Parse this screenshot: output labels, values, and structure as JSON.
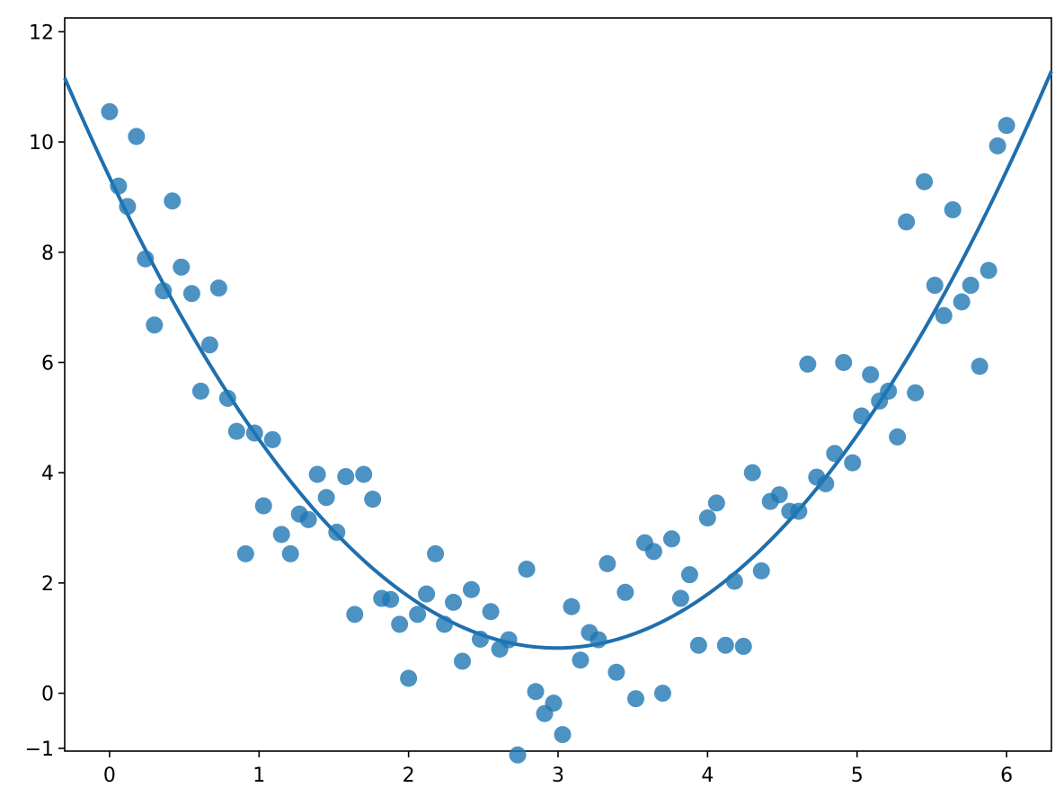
{
  "chart_data": {
    "type": "scatter",
    "title": "",
    "xlabel": "",
    "ylabel": "",
    "xlim": [
      -0.3,
      6.3
    ],
    "ylim": [
      -1.05,
      12.25
    ],
    "xticks": [
      0,
      1,
      2,
      3,
      4,
      5,
      6
    ],
    "xtick_labels": [
      "0",
      "1",
      "2",
      "3",
      "4",
      "5",
      "6"
    ],
    "yticks": [
      -1,
      0,
      2,
      4,
      6,
      8,
      10,
      12
    ],
    "ytick_labels": [
      "−1",
      "0",
      "2",
      "4",
      "6",
      "8",
      "10",
      "12"
    ],
    "grid": false,
    "colors": {
      "points": "#1f77b4",
      "line": "#1f6fae",
      "frame": "#000000"
    },
    "series": [
      {
        "kind": "scatter",
        "x": [
          0.0,
          0.06,
          0.12,
          0.18,
          0.24,
          0.3,
          0.36,
          0.42,
          0.48,
          0.55,
          0.61,
          0.67,
          0.73,
          0.79,
          0.85,
          0.91,
          0.97,
          1.03,
          1.09,
          1.15,
          1.21,
          1.27,
          1.33,
          1.39,
          1.45,
          1.52,
          1.58,
          1.64,
          1.7,
          1.76,
          1.82,
          1.88,
          1.94,
          2.0,
          2.06,
          2.12,
          2.18,
          2.24,
          2.3,
          2.36,
          2.42,
          2.48,
          2.55,
          2.61,
          2.67,
          2.73,
          2.79,
          2.85,
          2.91,
          2.97,
          3.03,
          3.09,
          3.15,
          3.21,
          3.27,
          3.33,
          3.39,
          3.45,
          3.52,
          3.58,
          3.64,
          3.7,
          3.76,
          3.82,
          3.88,
          3.94,
          4.0,
          4.06,
          4.12,
          4.18,
          4.24,
          4.3,
          4.36,
          4.42,
          4.48,
          4.55,
          4.61,
          4.67,
          4.73,
          4.79,
          4.85,
          4.91,
          4.97,
          5.03,
          5.09,
          5.15,
          5.21,
          5.27,
          5.33,
          5.39,
          5.45,
          5.52,
          5.58,
          5.64,
          5.7,
          5.76,
          5.82,
          5.88,
          5.94,
          6.0
        ],
        "y": [
          10.55,
          9.2,
          8.83,
          10.1,
          7.88,
          6.68,
          7.3,
          8.93,
          7.73,
          7.25,
          5.48,
          6.32,
          7.35,
          5.35,
          4.75,
          2.53,
          4.72,
          3.4,
          4.6,
          2.88,
          2.53,
          3.25,
          3.15,
          3.97,
          3.55,
          2.92,
          3.93,
          1.43,
          3.97,
          3.52,
          1.72,
          1.7,
          1.25,
          0.27,
          1.43,
          1.8,
          2.53,
          1.25,
          1.65,
          0.58,
          1.88,
          0.98,
          1.48,
          0.8,
          0.97,
          -1.12,
          2.25,
          0.03,
          -0.37,
          -0.18,
          -0.75,
          1.57,
          0.6,
          1.1,
          0.97,
          2.35,
          0.38,
          1.83,
          -0.1,
          2.73,
          2.57,
          0.0,
          2.8,
          1.72,
          2.15,
          0.87,
          3.18,
          3.45,
          0.87,
          2.03,
          0.85,
          4.0,
          2.22,
          3.48,
          3.6,
          3.3,
          3.3,
          5.97,
          3.92,
          3.8,
          4.35,
          6.0,
          4.18,
          5.03,
          5.78,
          5.3,
          5.48,
          4.65,
          8.55,
          5.45,
          9.28,
          7.4,
          6.85,
          8.77,
          7.1,
          7.4,
          5.93,
          7.67,
          9.93,
          10.3
        ]
      },
      {
        "kind": "line",
        "curve": "quadratic",
        "x_range": [
          -0.3,
          6.3
        ],
        "y_at_x0": 9.36,
        "vertex_x": 2.99,
        "vertex_y": 0.82
      }
    ]
  }
}
